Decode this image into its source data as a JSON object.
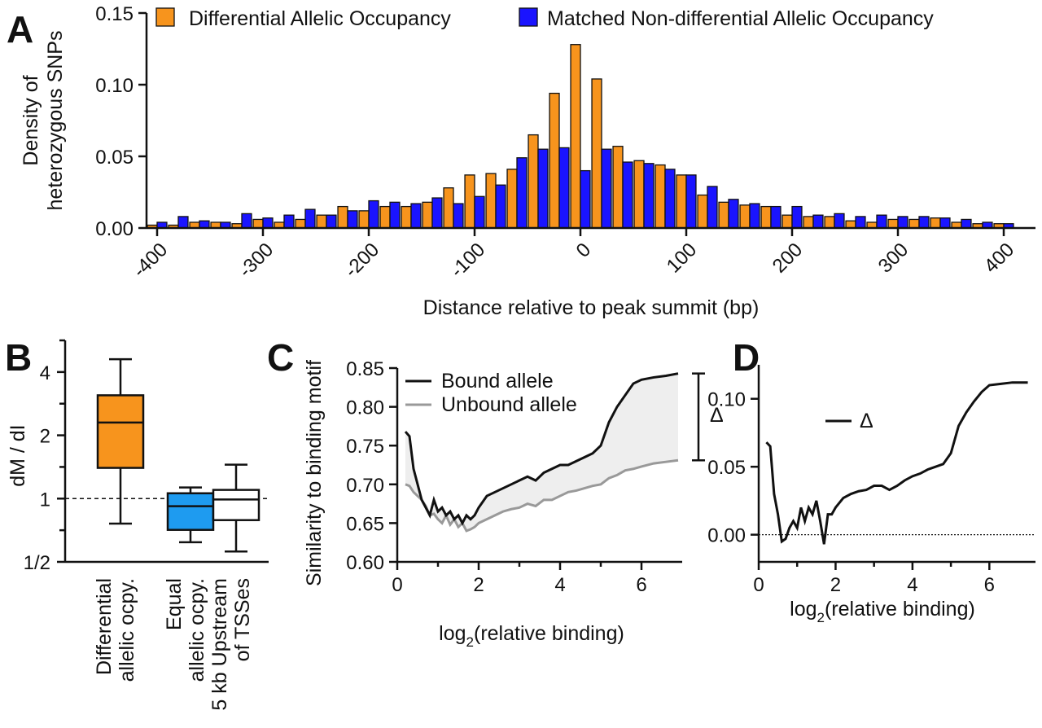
{
  "colors": {
    "orange": "#f7941d",
    "blue": "#1a14ff",
    "light_blue": "#1e9bf0",
    "gray_line": "#999999",
    "fill_gray": "#eeeeee",
    "black": "#111111"
  },
  "chart_data": [
    {
      "panel": "A",
      "type": "bar",
      "ylabel_lines": [
        "Density of",
        "heterozygous SNPs"
      ],
      "xlabel": "Distance relative to peak summit (bp)",
      "xlim": [
        -410,
        430
      ],
      "ylim": [
        0,
        0.15
      ],
      "xticks": [
        -400,
        -300,
        -200,
        -100,
        0,
        100,
        200,
        300,
        400
      ],
      "xtick_labels": [
        "-400",
        "-300",
        "-200",
        "-100",
        "0",
        "100",
        "200",
        "300",
        "400"
      ],
      "yticks": [
        0,
        0.05,
        0.1,
        0.15
      ],
      "ytick_labels": [
        "0.00",
        "0.05",
        "0.10",
        "0.15"
      ],
      "legend_position": "top",
      "bin_width": 20,
      "x": [
        -400,
        -380,
        -360,
        -340,
        -320,
        -300,
        -280,
        -260,
        -240,
        -220,
        -200,
        -180,
        -160,
        -140,
        -120,
        -100,
        -80,
        -60,
        -40,
        -20,
        0,
        20,
        40,
        60,
        80,
        100,
        120,
        140,
        160,
        180,
        200,
        220,
        240,
        260,
        280,
        300,
        320,
        340,
        360,
        380,
        400
      ],
      "series": [
        {
          "name": "Differential Allelic Occupancy",
          "color": "#f7941d",
          "values": [
            0.002,
            0.002,
            0.004,
            0.004,
            0.003,
            0.006,
            0.004,
            0.006,
            0.009,
            0.015,
            0.012,
            0.015,
            0.015,
            0.018,
            0.028,
            0.037,
            0.038,
            0.041,
            0.065,
            0.094,
            0.128,
            0.104,
            0.057,
            0.047,
            0.044,
            0.037,
            0.023,
            0.018,
            0.016,
            0.015,
            0.009,
            0.008,
            0.008,
            0.005,
            0.004,
            0.006,
            0.006,
            0.007,
            0.004,
            0.003,
            0.003
          ]
        },
        {
          "name": "Matched Non-differential Allelic Occupancy",
          "color": "#1a14ff",
          "values": [
            0.004,
            0.008,
            0.005,
            0.004,
            0.01,
            0.007,
            0.009,
            0.013,
            0.009,
            0.012,
            0.019,
            0.018,
            0.017,
            0.021,
            0.017,
            0.022,
            0.03,
            0.049,
            0.055,
            0.056,
            0.04,
            0.055,
            0.046,
            0.045,
            0.041,
            0.037,
            0.029,
            0.02,
            0.017,
            0.015,
            0.015,
            0.009,
            0.01,
            0.008,
            0.009,
            0.008,
            0.008,
            0.007,
            0.006,
            0.004,
            0.003
          ]
        }
      ]
    },
    {
      "panel": "B",
      "type": "box",
      "ylabel": "dM / dI",
      "ylim_log2": [
        -1,
        2.5
      ],
      "yscale": "log2",
      "yticks_log2": [
        -1,
        0,
        1,
        2
      ],
      "ytick_labels": [
        "1/2",
        "1",
        "2",
        "4"
      ],
      "reference_line": 1,
      "categories": [
        {
          "lines": [
            "Differential",
            "allelic ocpy."
          ],
          "color": "#f7941d",
          "whisker_low": 0.76,
          "q1": 1.4,
          "median": 2.3,
          "q3": 3.1,
          "whisker_high": 4.6
        },
        {
          "lines": [
            "Equal",
            "allelic ocpy."
          ],
          "color": "#1e9bf0",
          "whisker_low": 0.62,
          "q1": 0.71,
          "median": 0.92,
          "q3": 1.06,
          "whisker_high": 1.13
        },
        {
          "lines": [
            "5 kb Upstream",
            "of TSSes"
          ],
          "color": "#ffffff",
          "whisker_low": 0.56,
          "q1": 0.79,
          "median": 0.99,
          "q3": 1.1,
          "whisker_high": 1.45
        }
      ]
    },
    {
      "panel": "C",
      "type": "line",
      "ylabel": "Similarity to binding motif",
      "xlabel_main": "log",
      "xlabel_sub": "2",
      "xlabel_rest": "(relative binding)",
      "xlim": [
        0,
        7
      ],
      "ylim": [
        0.6,
        0.85
      ],
      "xticks": [
        0,
        2,
        4,
        6
      ],
      "xtick_labels": [
        "0",
        "2",
        "4",
        "6"
      ],
      "yticks": [
        0.6,
        0.65,
        0.7,
        0.75,
        0.8,
        0.85
      ],
      "ytick_labels": [
        "0.60",
        "0.65",
        "0.70",
        "0.75",
        "0.80",
        "0.85"
      ],
      "legend_position": "top-left",
      "delta_label": "Δ",
      "series": [
        {
          "name": "Bound allele",
          "color": "#111111",
          "x": [
            0.2,
            0.3,
            0.4,
            0.5,
            0.6,
            0.7,
            0.8,
            0.9,
            1.0,
            1.1,
            1.2,
            1.3,
            1.4,
            1.5,
            1.6,
            1.7,
            1.8,
            1.9,
            2.0,
            2.2,
            2.4,
            2.6,
            2.8,
            3.0,
            3.2,
            3.4,
            3.6,
            3.8,
            4.0,
            4.2,
            4.4,
            4.6,
            4.8,
            5.0,
            5.2,
            5.4,
            5.6,
            5.8,
            6.0,
            6.3,
            6.6,
            6.9
          ],
          "y": [
            0.768,
            0.762,
            0.72,
            0.7,
            0.68,
            0.67,
            0.66,
            0.68,
            0.665,
            0.67,
            0.66,
            0.665,
            0.655,
            0.66,
            0.65,
            0.66,
            0.655,
            0.66,
            0.67,
            0.685,
            0.69,
            0.695,
            0.7,
            0.705,
            0.71,
            0.705,
            0.715,
            0.72,
            0.725,
            0.725,
            0.73,
            0.735,
            0.74,
            0.75,
            0.78,
            0.8,
            0.815,
            0.83,
            0.835,
            0.838,
            0.84,
            0.843
          ]
        },
        {
          "name": "Unbound allele",
          "color": "#999999",
          "x": [
            0.2,
            0.3,
            0.4,
            0.5,
            0.6,
            0.7,
            0.8,
            0.9,
            1.0,
            1.1,
            1.2,
            1.3,
            1.4,
            1.5,
            1.6,
            1.7,
            1.8,
            1.9,
            2.0,
            2.2,
            2.4,
            2.6,
            2.8,
            3.0,
            3.2,
            3.4,
            3.6,
            3.8,
            4.0,
            4.2,
            4.4,
            4.6,
            4.8,
            5.0,
            5.2,
            5.4,
            5.6,
            5.8,
            6.0,
            6.3,
            6.6,
            6.9
          ],
          "y": [
            0.7,
            0.698,
            0.69,
            0.685,
            0.68,
            0.672,
            0.66,
            0.662,
            0.655,
            0.65,
            0.66,
            0.648,
            0.655,
            0.645,
            0.65,
            0.64,
            0.642,
            0.645,
            0.65,
            0.655,
            0.66,
            0.665,
            0.668,
            0.67,
            0.675,
            0.672,
            0.68,
            0.68,
            0.685,
            0.69,
            0.692,
            0.695,
            0.698,
            0.7,
            0.708,
            0.712,
            0.718,
            0.72,
            0.723,
            0.727,
            0.729,
            0.731
          ]
        }
      ]
    },
    {
      "panel": "D",
      "type": "line",
      "xlabel_main": "log",
      "xlabel_sub": "2",
      "xlabel_rest": "(relative binding)",
      "xlim": [
        0,
        7.2
      ],
      "ylim": [
        -0.02,
        0.125
      ],
      "xticks": [
        0,
        2,
        4,
        6
      ],
      "xtick_labels": [
        "0",
        "2",
        "4",
        "6"
      ],
      "yticks": [
        0.0,
        0.05,
        0.1
      ],
      "ytick_labels": [
        "0.00",
        "0.05",
        "0.10"
      ],
      "reference_line": 0,
      "legend_label": "Δ",
      "series": [
        {
          "name": "Δ",
          "color": "#111111",
          "x": [
            0.2,
            0.3,
            0.4,
            0.5,
            0.6,
            0.7,
            0.8,
            0.9,
            1.0,
            1.1,
            1.2,
            1.3,
            1.4,
            1.5,
            1.6,
            1.7,
            1.8,
            1.9,
            2.0,
            2.2,
            2.4,
            2.6,
            2.8,
            3.0,
            3.2,
            3.4,
            3.6,
            3.8,
            4.0,
            4.2,
            4.4,
            4.6,
            4.8,
            5.0,
            5.2,
            5.4,
            5.6,
            5.8,
            6.0,
            6.3,
            6.6,
            7.0
          ],
          "y": [
            0.068,
            0.065,
            0.03,
            0.015,
            -0.005,
            -0.003,
            0.005,
            0.01,
            0.005,
            0.02,
            0.01,
            0.02,
            0.015,
            0.025,
            0.01,
            -0.007,
            0.015,
            0.015,
            0.02,
            0.027,
            0.03,
            0.032,
            0.033,
            0.036,
            0.036,
            0.033,
            0.036,
            0.04,
            0.043,
            0.045,
            0.048,
            0.05,
            0.052,
            0.06,
            0.08,
            0.09,
            0.098,
            0.105,
            0.11,
            0.111,
            0.112,
            0.112
          ]
        }
      ]
    }
  ]
}
